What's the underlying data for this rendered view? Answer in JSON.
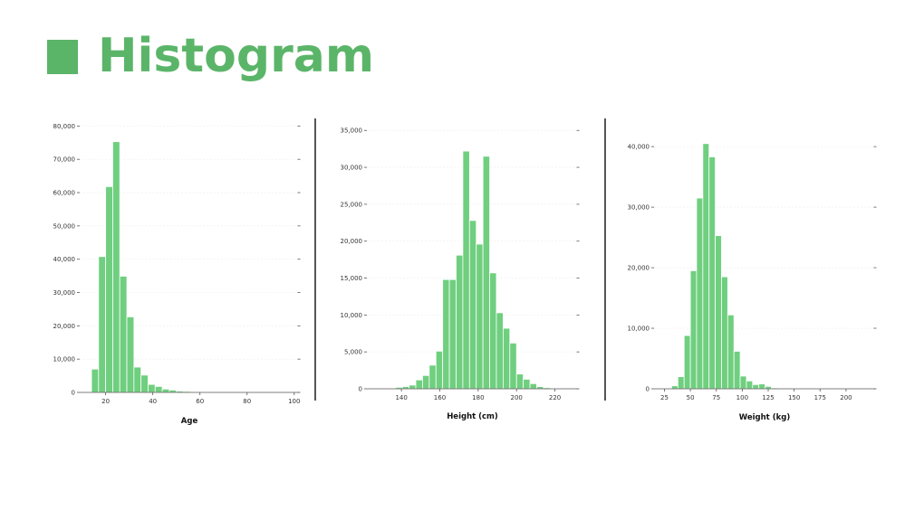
{
  "slide": {
    "title": "Histogram",
    "accent_color": "#5bb569",
    "bar_color": "#6fcf7f"
  },
  "chart_data": [
    {
      "type": "bar",
      "title": "",
      "xlabel": "Age",
      "ylabel": "",
      "xlim": [
        9,
        102
      ],
      "ylim": [
        0,
        82000
      ],
      "bin_width": 3,
      "bin_starts": [
        14,
        17,
        20,
        23,
        26,
        29,
        32,
        35,
        38,
        41,
        44,
        47,
        50,
        53,
        56,
        59,
        62,
        65,
        68,
        71,
        74,
        77,
        80,
        83,
        86,
        89,
        92,
        95,
        98
      ],
      "values": [
        7000,
        40800,
        61800,
        75300,
        34900,
        22700,
        7600,
        5200,
        2400,
        1800,
        1000,
        700,
        400,
        300,
        200,
        150,
        100,
        80,
        60,
        40,
        30,
        20,
        10,
        10,
        5,
        5,
        5,
        5,
        5
      ],
      "x_ticks": [
        20,
        40,
        60,
        80,
        100
      ],
      "x_tick_labels": [
        "20",
        "40",
        "60",
        "80",
        "100"
      ],
      "y_ticks": [
        0,
        10000,
        20000,
        30000,
        40000,
        50000,
        60000,
        70000,
        80000
      ],
      "y_tick_labels": [
        "0",
        "10,000",
        "20,000",
        "30,000",
        "40,000",
        "50,000",
        "60,000",
        "70,000",
        "80,000"
      ]
    },
    {
      "type": "bar",
      "title": "",
      "xlabel": "Height (cm)",
      "ylabel": "",
      "xlim": [
        122,
        232
      ],
      "ylim": [
        0,
        36500
      ],
      "bin_width": 3.5,
      "bin_starts": [
        130,
        133.5,
        137,
        140.5,
        144,
        147.5,
        151,
        154.5,
        158,
        161.5,
        165,
        168.5,
        172,
        175.5,
        179,
        182.5,
        186,
        189.5,
        193,
        196.5,
        200,
        203.5,
        207,
        210.5,
        214,
        217.5
      ],
      "values": [
        50,
        100,
        200,
        300,
        500,
        1200,
        1800,
        3200,
        5100,
        14800,
        14800,
        18100,
        32200,
        22800,
        19600,
        31500,
        15700,
        10300,
        8200,
        6200,
        2000,
        1300,
        700,
        300,
        150,
        80
      ],
      "x_ticks": [
        140,
        160,
        180,
        200,
        220
      ],
      "x_tick_labels": [
        "140",
        "160",
        "180",
        "200",
        "220"
      ],
      "y_ticks": [
        0,
        5000,
        10000,
        15000,
        20000,
        25000,
        30000,
        35000
      ],
      "y_tick_labels": [
        "0",
        "5,000",
        "10,000",
        "15,000",
        "20,000",
        "25,000",
        "30,000",
        "35,000"
      ]
    },
    {
      "type": "bar",
      "title": "",
      "xlabel": "Weight (kg)",
      "ylabel": "",
      "xlim": [
        15,
        228
      ],
      "ylim": [
        0,
        44500
      ],
      "bin_width": 6,
      "bin_starts": [
        26,
        32,
        38,
        44,
        50,
        56,
        62,
        68,
        74,
        80,
        86,
        92,
        98,
        104,
        110,
        116,
        122,
        128,
        134,
        140,
        146,
        152
      ],
      "values": [
        100,
        500,
        2000,
        8800,
        19500,
        31500,
        40500,
        38300,
        25300,
        18500,
        12200,
        6200,
        2100,
        1300,
        700,
        800,
        400,
        150,
        100,
        50,
        30,
        20
      ],
      "x_ticks": [
        25,
        50,
        75,
        100,
        125,
        150,
        175,
        200
      ],
      "x_tick_labels": [
        "25",
        "50",
        "75",
        "100",
        "125",
        "150",
        "175",
        "200"
      ],
      "y_ticks": [
        0,
        10000,
        20000,
        30000,
        40000
      ],
      "y_tick_labels": [
        "0",
        "10,000",
        "20,000",
        "30,000",
        "40,000"
      ]
    }
  ]
}
